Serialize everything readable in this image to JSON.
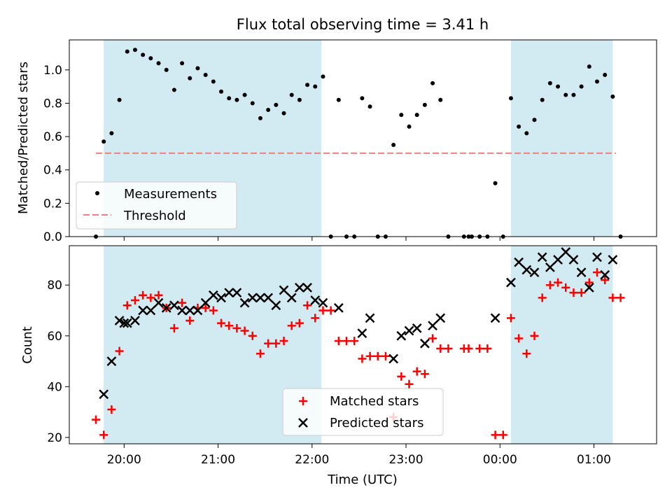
{
  "chart_data": [
    {
      "type": "scatter",
      "title": "Flux total observing time = 3.41 h",
      "xlabel": "",
      "ylabel": "Matched/Predicted stars",
      "xlim": [
        "19:25",
        "01:40"
      ],
      "ylim": [
        0,
        1.18
      ],
      "yticks": [
        0.0,
        0.2,
        0.4,
        0.6,
        0.8,
        1.0
      ],
      "ytick_labels": [
        "0.0",
        "0.2",
        "0.4",
        "0.6",
        "0.8",
        "1.0"
      ],
      "legend_position": "lower-left",
      "highlight_spans": [
        [
          "19:47",
          "22:06"
        ],
        [
          "00:07",
          "01:12"
        ]
      ],
      "highlight_color": "#add8e6",
      "threshold": {
        "name": "Threshold",
        "value": 0.5,
        "x": [
          "19:42",
          "01:14"
        ],
        "color": "#f08080",
        "style": "dashed"
      },
      "series": [
        {
          "name": "Measurements",
          "marker": "dot",
          "color": "#000000",
          "points": [
            [
              "19:42",
              0.0
            ],
            [
              "19:47",
              0.57
            ],
            [
              "19:52",
              0.62
            ],
            [
              "19:57",
              0.82
            ],
            [
              "20:02",
              1.11
            ],
            [
              "20:07",
              1.12
            ],
            [
              "20:12",
              1.09
            ],
            [
              "20:17",
              1.07
            ],
            [
              "20:22",
              1.04
            ],
            [
              "20:27",
              1.0
            ],
            [
              "20:32",
              0.88
            ],
            [
              "20:37",
              1.04
            ],
            [
              "20:42",
              0.95
            ],
            [
              "20:47",
              1.01
            ],
            [
              "20:52",
              0.97
            ],
            [
              "20:57",
              0.93
            ],
            [
              "21:02",
              0.87
            ],
            [
              "21:07",
              0.83
            ],
            [
              "21:12",
              0.82
            ],
            [
              "21:17",
              0.85
            ],
            [
              "21:22",
              0.8
            ],
            [
              "21:27",
              0.71
            ],
            [
              "21:32",
              0.76
            ],
            [
              "21:37",
              0.79
            ],
            [
              "21:42",
              0.74
            ],
            [
              "21:47",
              0.85
            ],
            [
              "21:52",
              0.82
            ],
            [
              "21:57",
              0.91
            ],
            [
              "22:02",
              0.9
            ],
            [
              "22:07",
              0.96
            ],
            [
              "22:12",
              0.0
            ],
            [
              "22:17",
              0.82
            ],
            [
              "22:22",
              0.0
            ],
            [
              "22:27",
              0.0
            ],
            [
              "22:32",
              0.83
            ],
            [
              "22:37",
              0.78
            ],
            [
              "22:42",
              0.0
            ],
            [
              "22:47",
              0.0
            ],
            [
              "22:52",
              0.55
            ],
            [
              "22:57",
              0.73
            ],
            [
              "23:02",
              0.66
            ],
            [
              "23:07",
              0.73
            ],
            [
              "23:12",
              0.79
            ],
            [
              "23:17",
              0.92
            ],
            [
              "23:22",
              0.82
            ],
            [
              "23:27",
              0.0
            ],
            [
              "23:37",
              0.0
            ],
            [
              "23:40",
              0.0
            ],
            [
              "23:42",
              0.0
            ],
            [
              "23:47",
              0.0
            ],
            [
              "23:52",
              0.0
            ],
            [
              "23:57",
              0.32
            ],
            [
              "00:02",
              0.0
            ],
            [
              "00:07",
              0.83
            ],
            [
              "00:12",
              0.66
            ],
            [
              "00:17",
              0.62
            ],
            [
              "00:22",
              0.7
            ],
            [
              "00:27",
              0.82
            ],
            [
              "00:32",
              0.92
            ],
            [
              "00:37",
              0.9
            ],
            [
              "00:42",
              0.85
            ],
            [
              "00:47",
              0.85
            ],
            [
              "00:52",
              0.9
            ],
            [
              "00:57",
              1.02
            ],
            [
              "01:02",
              0.93
            ],
            [
              "01:07",
              0.97
            ],
            [
              "01:12",
              0.84
            ],
            [
              "01:17",
              0.0
            ]
          ]
        }
      ]
    },
    {
      "type": "scatter",
      "title": "",
      "xlabel": "Time (UTC)",
      "ylabel": "Count",
      "xlim": [
        "19:25",
        "01:40"
      ],
      "ylim": [
        17.5,
        95.5
      ],
      "yticks": [
        20,
        40,
        60,
        80
      ],
      "ytick_labels": [
        "20",
        "40",
        "60",
        "80"
      ],
      "xticks": [
        "20:00",
        "21:00",
        "22:00",
        "23:00",
        "00:00",
        "01:00"
      ],
      "xtick_labels": [
        "20:00",
        "21:00",
        "22:00",
        "23:00",
        "00:00",
        "01:00"
      ],
      "legend_position": "lower-center",
      "highlight_spans": [
        [
          "19:47",
          "22:06"
        ],
        [
          "00:07",
          "01:12"
        ]
      ],
      "highlight_color": "#add8e6",
      "series": [
        {
          "name": "Matched stars",
          "marker": "plus",
          "color": "#ff0000",
          "points": [
            [
              "19:42",
              27
            ],
            [
              "19:47",
              21
            ],
            [
              "19:52",
              31
            ],
            [
              "19:57",
              54
            ],
            [
              "20:02",
              72
            ],
            [
              "20:07",
              74
            ],
            [
              "20:12",
              76
            ],
            [
              "20:17",
              75
            ],
            [
              "20:22",
              76
            ],
            [
              "20:27",
              71
            ],
            [
              "20:32",
              63
            ],
            [
              "20:37",
              73
            ],
            [
              "20:42",
              66
            ],
            [
              "20:47",
              71
            ],
            [
              "20:52",
              71
            ],
            [
              "20:57",
              70
            ],
            [
              "21:02",
              65
            ],
            [
              "21:07",
              64
            ],
            [
              "21:12",
              63
            ],
            [
              "21:17",
              62
            ],
            [
              "21:22",
              60
            ],
            [
              "21:27",
              53
            ],
            [
              "21:32",
              57
            ],
            [
              "21:37",
              57
            ],
            [
              "21:42",
              58
            ],
            [
              "21:47",
              64
            ],
            [
              "21:52",
              65
            ],
            [
              "21:57",
              72
            ],
            [
              "22:02",
              67
            ],
            [
              "22:07",
              70
            ],
            [
              "22:12",
              70
            ],
            [
              "22:17",
              58
            ],
            [
              "22:22",
              58
            ],
            [
              "22:27",
              58
            ],
            [
              "22:32",
              51
            ],
            [
              "22:37",
              52
            ],
            [
              "22:42",
              52
            ],
            [
              "22:47",
              52
            ],
            [
              "22:52",
              28
            ],
            [
              "22:57",
              44
            ],
            [
              "23:02",
              41
            ],
            [
              "23:07",
              46
            ],
            [
              "23:12",
              45
            ],
            [
              "23:17",
              59
            ],
            [
              "23:22",
              55
            ],
            [
              "23:27",
              55
            ],
            [
              "23:37",
              55
            ],
            [
              "23:40",
              55
            ],
            [
              "23:47",
              55
            ],
            [
              "23:52",
              55
            ],
            [
              "23:57",
              21
            ],
            [
              "00:02",
              21
            ],
            [
              "00:07",
              67
            ],
            [
              "00:12",
              59
            ],
            [
              "00:17",
              53
            ],
            [
              "00:22",
              60
            ],
            [
              "00:27",
              75
            ],
            [
              "00:32",
              80
            ],
            [
              "00:37",
              81
            ],
            [
              "00:42",
              79
            ],
            [
              "00:47",
              77
            ],
            [
              "00:52",
              77
            ],
            [
              "00:57",
              81
            ],
            [
              "01:02",
              85
            ],
            [
              "01:07",
              82
            ],
            [
              "01:12",
              75
            ],
            [
              "01:17",
              75
            ]
          ]
        },
        {
          "name": "Predicted stars",
          "marker": "x",
          "color": "#000000",
          "points": [
            [
              "19:47",
              37
            ],
            [
              "19:52",
              50
            ],
            [
              "19:57",
              66
            ],
            [
              "20:00",
              65
            ],
            [
              "20:02",
              65
            ],
            [
              "20:07",
              66
            ],
            [
              "20:12",
              70
            ],
            [
              "20:17",
              70
            ],
            [
              "20:22",
              73
            ],
            [
              "20:27",
              71
            ],
            [
              "20:32",
              72
            ],
            [
              "20:37",
              70
            ],
            [
              "20:42",
              70
            ],
            [
              "20:47",
              70
            ],
            [
              "20:52",
              73
            ],
            [
              "20:57",
              76
            ],
            [
              "21:02",
              75
            ],
            [
              "21:07",
              77
            ],
            [
              "21:12",
              77
            ],
            [
              "21:17",
              73
            ],
            [
              "21:22",
              75
            ],
            [
              "21:27",
              75
            ],
            [
              "21:32",
              75
            ],
            [
              "21:37",
              72
            ],
            [
              "21:42",
              78
            ],
            [
              "21:47",
              75
            ],
            [
              "21:52",
              79
            ],
            [
              "21:57",
              79
            ],
            [
              "22:02",
              74
            ],
            [
              "22:07",
              73
            ],
            [
              "22:17",
              71
            ],
            [
              "22:32",
              61
            ],
            [
              "22:37",
              67
            ],
            [
              "22:52",
              51
            ],
            [
              "22:57",
              60
            ],
            [
              "23:02",
              62
            ],
            [
              "23:07",
              63
            ],
            [
              "23:12",
              57
            ],
            [
              "23:17",
              64
            ],
            [
              "23:22",
              67
            ],
            [
              "23:57",
              67
            ],
            [
              "00:07",
              81
            ],
            [
              "00:12",
              89
            ],
            [
              "00:17",
              86
            ],
            [
              "00:22",
              85
            ],
            [
              "00:27",
              91
            ],
            [
              "00:32",
              87
            ],
            [
              "00:37",
              90
            ],
            [
              "00:42",
              93
            ],
            [
              "00:47",
              90
            ],
            [
              "00:52",
              85
            ],
            [
              "00:57",
              79
            ],
            [
              "01:02",
              91
            ],
            [
              "01:07",
              84
            ],
            [
              "01:12",
              90
            ]
          ]
        }
      ]
    }
  ]
}
